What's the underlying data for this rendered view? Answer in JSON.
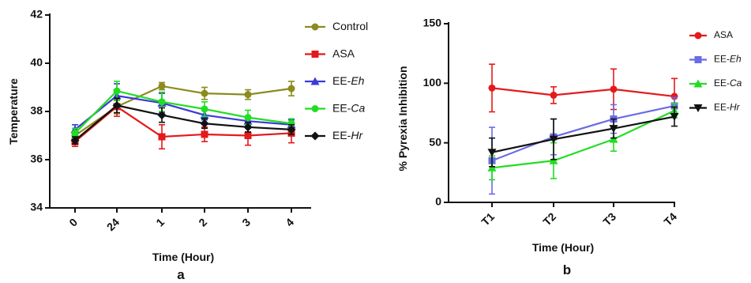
{
  "chart_data": [
    {
      "panel_label": "a",
      "type": "line",
      "xlabel": "Time (Hour)",
      "ylabel": "Temperature",
      "ylim": [
        34,
        42
      ],
      "yticks": [
        "34",
        "36",
        "38",
        "40",
        "42"
      ],
      "categories": [
        "0",
        "24",
        "1",
        "2",
        "3",
        "4"
      ],
      "legend_position": "right",
      "series": [
        {
          "name": "Control",
          "name_parts": [
            {
              "t": "Control",
              "i": false
            }
          ],
          "color": "#8b8b1e",
          "marker": "circle",
          "values": [
            37.0,
            38.2,
            39.05,
            38.75,
            38.7,
            38.95
          ],
          "errors": [
            0.2,
            0.3,
            0.15,
            0.25,
            0.2,
            0.3
          ]
        },
        {
          "name": "ASA",
          "name_parts": [
            {
              "t": "ASA",
              "i": false
            }
          ],
          "color": "#e31a1c",
          "marker": "square",
          "values": [
            36.75,
            38.2,
            36.95,
            37.05,
            37.0,
            37.1
          ],
          "errors": [
            0.2,
            0.4,
            0.5,
            0.3,
            0.4,
            0.4
          ]
        },
        {
          "name": "EE-Eh",
          "name_parts": [
            {
              "t": "EE-",
              "i": false
            },
            {
              "t": "Eh",
              "i": true
            }
          ],
          "color": "#3b3bd6",
          "marker": "triangle",
          "values": [
            37.25,
            38.65,
            38.35,
            37.85,
            37.6,
            37.45
          ],
          "errors": [
            0.2,
            0.5,
            0.4,
            0.2,
            0.2,
            0.2
          ]
        },
        {
          "name": "EE-Ca",
          "name_parts": [
            {
              "t": "EE-",
              "i": false
            },
            {
              "t": "Ca",
              "i": true
            }
          ],
          "color": "#22dd22",
          "marker": "circle",
          "values": [
            37.1,
            38.85,
            38.4,
            38.1,
            37.75,
            37.5
          ],
          "errors": [
            0.2,
            0.4,
            0.4,
            0.3,
            0.3,
            0.2
          ]
        },
        {
          "name": "EE-Hr",
          "name_parts": [
            {
              "t": "EE-",
              "i": false
            },
            {
              "t": "Hr",
              "i": true
            }
          ],
          "color": "#111111",
          "marker": "diamond",
          "values": [
            36.8,
            38.25,
            37.85,
            37.5,
            37.35,
            37.25
          ],
          "errors": [
            0.15,
            0.3,
            0.3,
            0.2,
            0.2,
            0.2
          ]
        }
      ]
    },
    {
      "panel_label": "b",
      "type": "line",
      "xlabel": "Time (Hour)",
      "ylabel": "% Pyrexia Inhibition",
      "ylim": [
        0,
        150
      ],
      "yticks": [
        "0",
        "50",
        "100",
        "150"
      ],
      "categories": [
        "T1",
        "T2",
        "T3",
        "T4"
      ],
      "legend_position": "right",
      "series": [
        {
          "name": "ASA",
          "name_parts": [
            {
              "t": "ASA",
              "i": false
            }
          ],
          "color": "#e31a1c",
          "marker": "circle",
          "values": [
            96,
            90,
            95,
            89
          ],
          "errors": [
            20,
            7,
            17,
            15
          ]
        },
        {
          "name": "EE-Eh",
          "name_parts": [
            {
              "t": "EE-",
              "i": false
            },
            {
              "t": "Eh",
              "i": true
            }
          ],
          "color": "#6b6be6",
          "marker": "square",
          "values": [
            35,
            55,
            70,
            81
          ],
          "errors": [
            28,
            15,
            12,
            7
          ]
        },
        {
          "name": "EE-Ca",
          "name_parts": [
            {
              "t": "EE-",
              "i": false
            },
            {
              "t": "Ca",
              "i": true
            }
          ],
          "color": "#22dd22",
          "marker": "triangle",
          "values": [
            29,
            35,
            53,
            77
          ],
          "errors": [
            10,
            15,
            10,
            6
          ]
        },
        {
          "name": "EE-Hr",
          "name_parts": [
            {
              "t": "EE-",
              "i": false
            },
            {
              "t": "Hr",
              "i": true
            }
          ],
          "color": "#111111",
          "marker": "triangle-down",
          "values": [
            42,
            53,
            62,
            72
          ],
          "errors": [
            12,
            17,
            8,
            8
          ]
        }
      ]
    }
  ]
}
